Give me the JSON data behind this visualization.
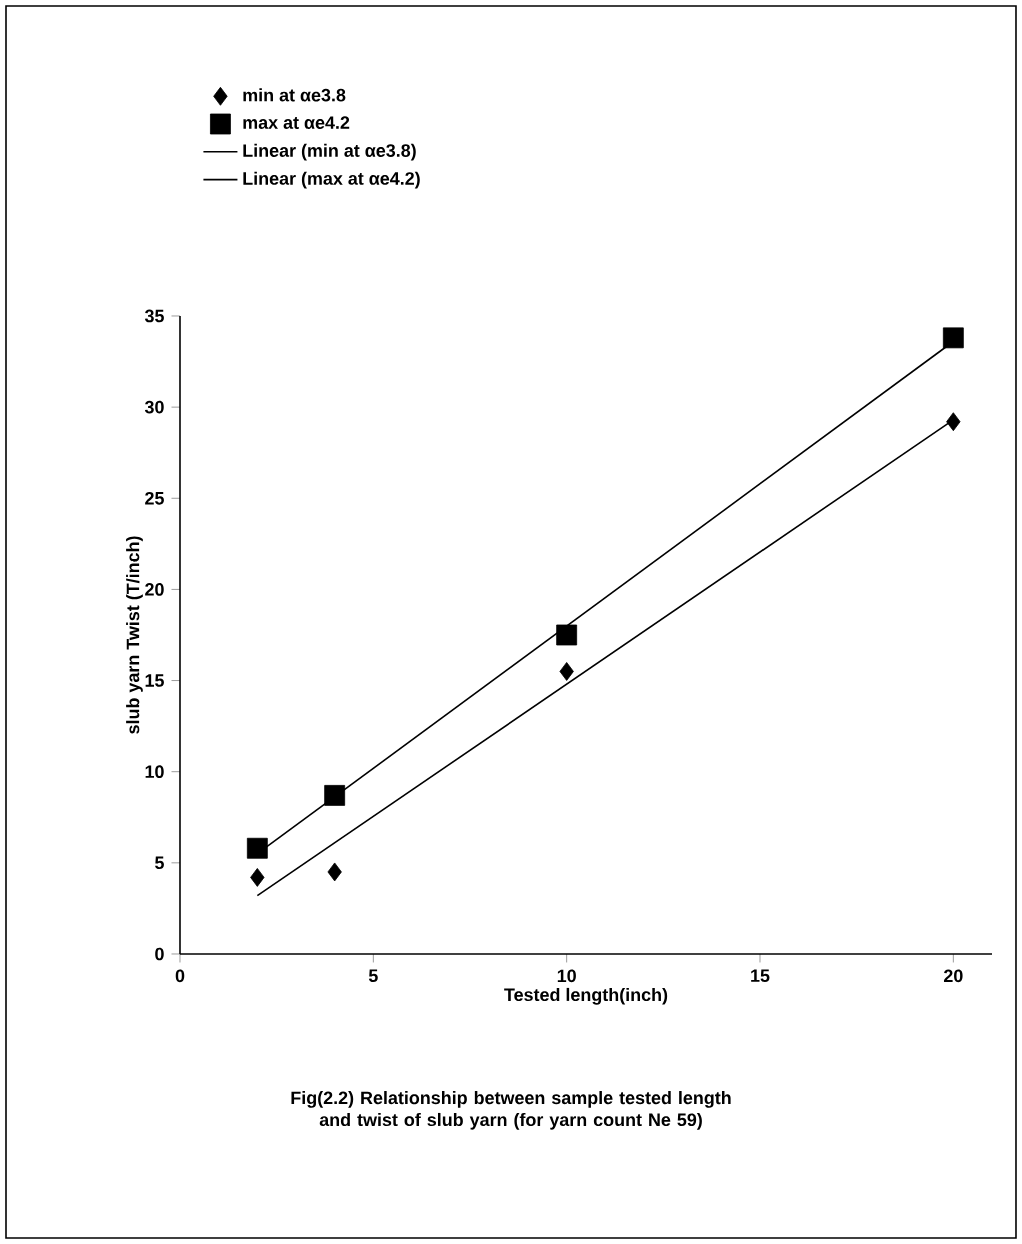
{
  "chart_data": {
    "type": "scatter",
    "xlabel": "Tested length(inch)",
    "ylabel": "slub yarn Twist (T/inch)",
    "xlim": [
      0,
      21
    ],
    "xticks": [
      0,
      5,
      10,
      15,
      20
    ],
    "ylim": [
      0,
      35
    ],
    "yticks": [
      0,
      5,
      10,
      15,
      20,
      25,
      30,
      35
    ],
    "legend": "top left",
    "grid": false,
    "series": [
      {
        "name": "min at αe3.8",
        "marker": "diamond",
        "color": "#000000",
        "x": [
          2,
          4,
          10,
          20
        ],
        "values": [
          4.2,
          4.5,
          15.5,
          29.2
        ]
      },
      {
        "name": "max at αe4.2",
        "marker": "square",
        "color": "#000000",
        "x": [
          2,
          4,
          10,
          20
        ],
        "values": [
          5.8,
          8.7,
          17.5,
          33.8
        ]
      },
      {
        "name": "Linear (min at αe3.8)",
        "type": "line",
        "marker": "none",
        "line_style": "solid",
        "color": "#000000",
        "x": [
          2,
          20
        ],
        "values": [
          3.2,
          29.3
        ]
      },
      {
        "name": "Linear (max at αe4.2)",
        "type": "line",
        "marker": "none",
        "line_style": "solid",
        "color": "#000000",
        "x": [
          2,
          20
        ],
        "values": [
          5.5,
          33.6
        ]
      }
    ],
    "annotations": [
      "Fig(2.2) Relationship between sample tested length and twist of slub yarn (for yarn count Ne 59)"
    ]
  }
}
